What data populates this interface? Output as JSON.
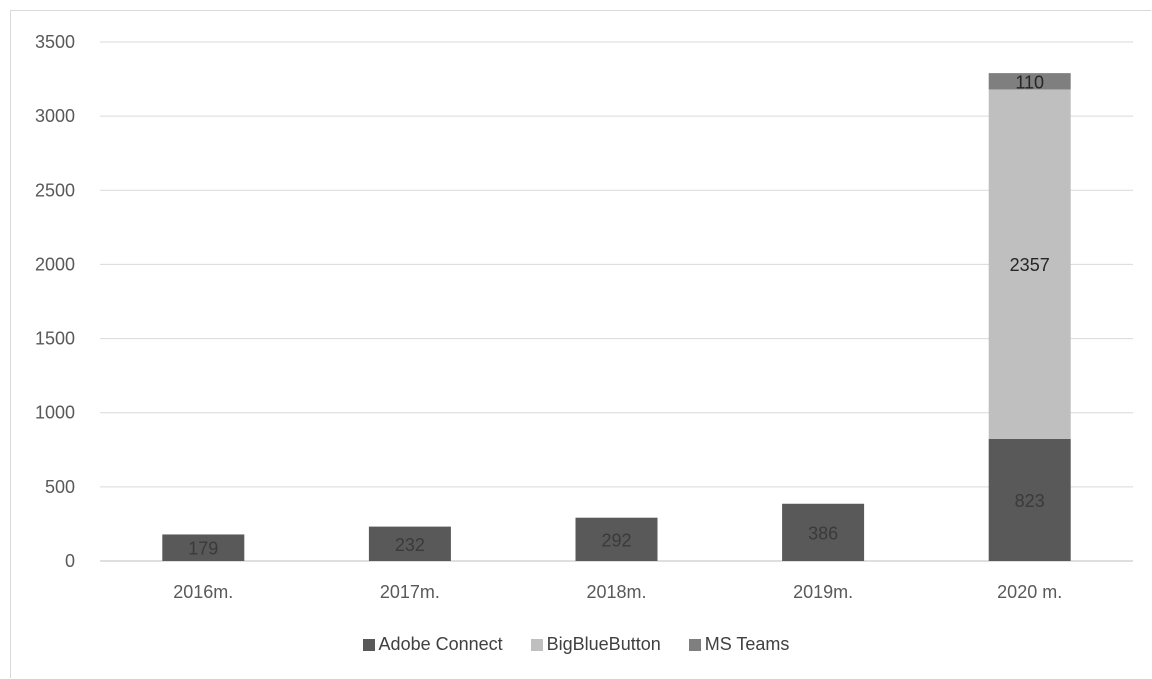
{
  "chart_data": {
    "type": "bar",
    "stacked": true,
    "categories": [
      "2016m.",
      "2017m.",
      "2018m.",
      "2019m.",
      "2020 m."
    ],
    "series": [
      {
        "name": "Adobe Connect",
        "values": [
          179,
          232,
          292,
          386,
          823
        ],
        "color": "#595959",
        "label_color": "#3a3a3a"
      },
      {
        "name": "BigBlueButton",
        "values": [
          0,
          0,
          0,
          0,
          2357
        ],
        "color": "#bfbfbf",
        "label_color": "#262626"
      },
      {
        "name": "MS Teams",
        "values": [
          0,
          0,
          0,
          0,
          110
        ],
        "color": "#7f7f7f",
        "label_color": "#262626"
      }
    ],
    "ylim": [
      0,
      3500
    ],
    "yticks": [
      0,
      500,
      1000,
      1500,
      2000,
      2500,
      3000,
      3500
    ],
    "grid": true,
    "legend_position": "bottom",
    "title": "",
    "xlabel": "",
    "ylabel": ""
  }
}
